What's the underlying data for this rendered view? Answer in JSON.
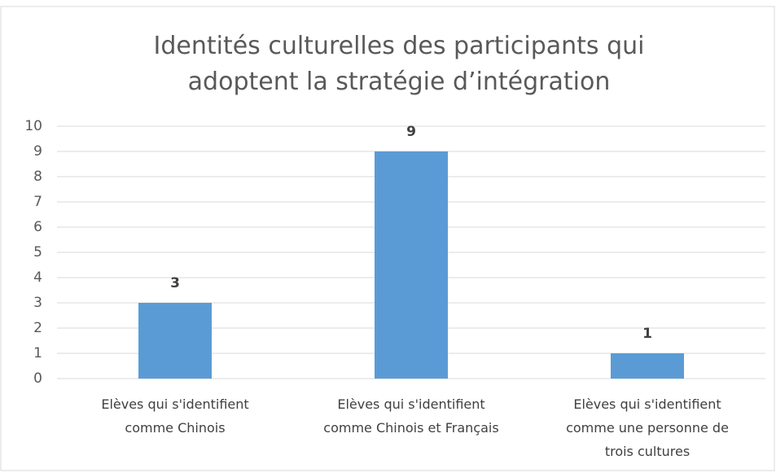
{
  "chart_data": {
    "type": "bar",
    "title": "Identités culturelles des participants qui adoptent la stratégie d’intégration",
    "categories": [
      "Elèves qui s'identifient comme Chinois",
      "Elèves qui s'identifient comme Chinois et Français",
      "Elèves qui s'identifient comme une personne de trois cultures"
    ],
    "values": [
      3,
      9,
      1
    ],
    "color": "#5b9bd5",
    "ylim": [
      0,
      10
    ],
    "yticks": [
      0,
      1,
      2,
      3,
      4,
      5,
      6,
      7,
      8,
      9,
      10
    ],
    "grid": true
  }
}
